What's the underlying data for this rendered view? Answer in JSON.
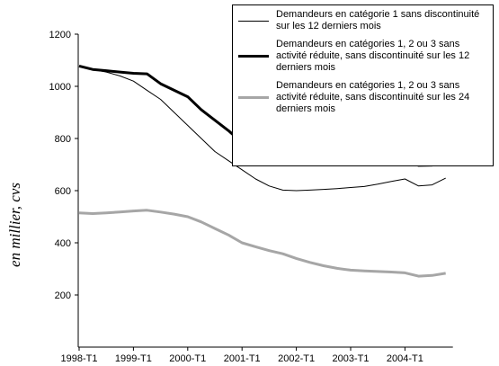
{
  "chart_data": {
    "type": "line",
    "y_label": "en millier, cvs",
    "categories": [
      "1998-T1",
      null,
      null,
      null,
      "1999-T1",
      null,
      null,
      null,
      "2000-T1",
      null,
      null,
      null,
      "2001-T1",
      null,
      null,
      null,
      "2002-T1",
      null,
      null,
      null,
      "2003-T1",
      null,
      null,
      null,
      "2004-T1",
      null,
      null,
      null
    ],
    "series": [
      {
        "name": "Demandeurs en catégorie 1 sans discontinuité sur les 12 derniers mois",
        "color": "#000000",
        "width": 1,
        "values": [
          1078,
          1065,
          1055,
          1040,
          1020,
          985,
          950,
          900,
          850,
          800,
          750,
          715,
          680,
          645,
          618,
          602,
          600,
          602,
          605,
          608,
          612,
          616,
          625,
          635,
          645,
          618,
          622,
          648
        ]
      },
      {
        "name": "Demandeurs en catégories 1, 2 ou 3 sans activité réduite, sans discontinuité sur les 12 derniers mois",
        "color": "#000000",
        "width": 3,
        "values": [
          1078,
          1065,
          1060,
          1055,
          1050,
          1048,
          1010,
          985,
          960,
          910,
          870,
          830,
          785,
          755,
          730,
          715,
          705,
          705,
          707,
          708,
          710,
          712,
          718,
          722,
          727,
          697,
          698,
          720
        ]
      },
      {
        "name": "Demandeurs en catégories 1, 2 ou 3 sans activité réduite, sans discontinuité sur les 24 derniers mois",
        "color": "#a6a6a6",
        "width": 3,
        "values": [
          515,
          512,
          515,
          518,
          522,
          525,
          518,
          510,
          500,
          480,
          455,
          430,
          400,
          385,
          370,
          358,
          340,
          325,
          312,
          302,
          295,
          292,
          290,
          288,
          285,
          272,
          275,
          283
        ]
      }
    ],
    "ylim": [
      0,
      1200
    ],
    "yticks": [
      200,
      400,
      600,
      800,
      1000,
      1200
    ]
  }
}
